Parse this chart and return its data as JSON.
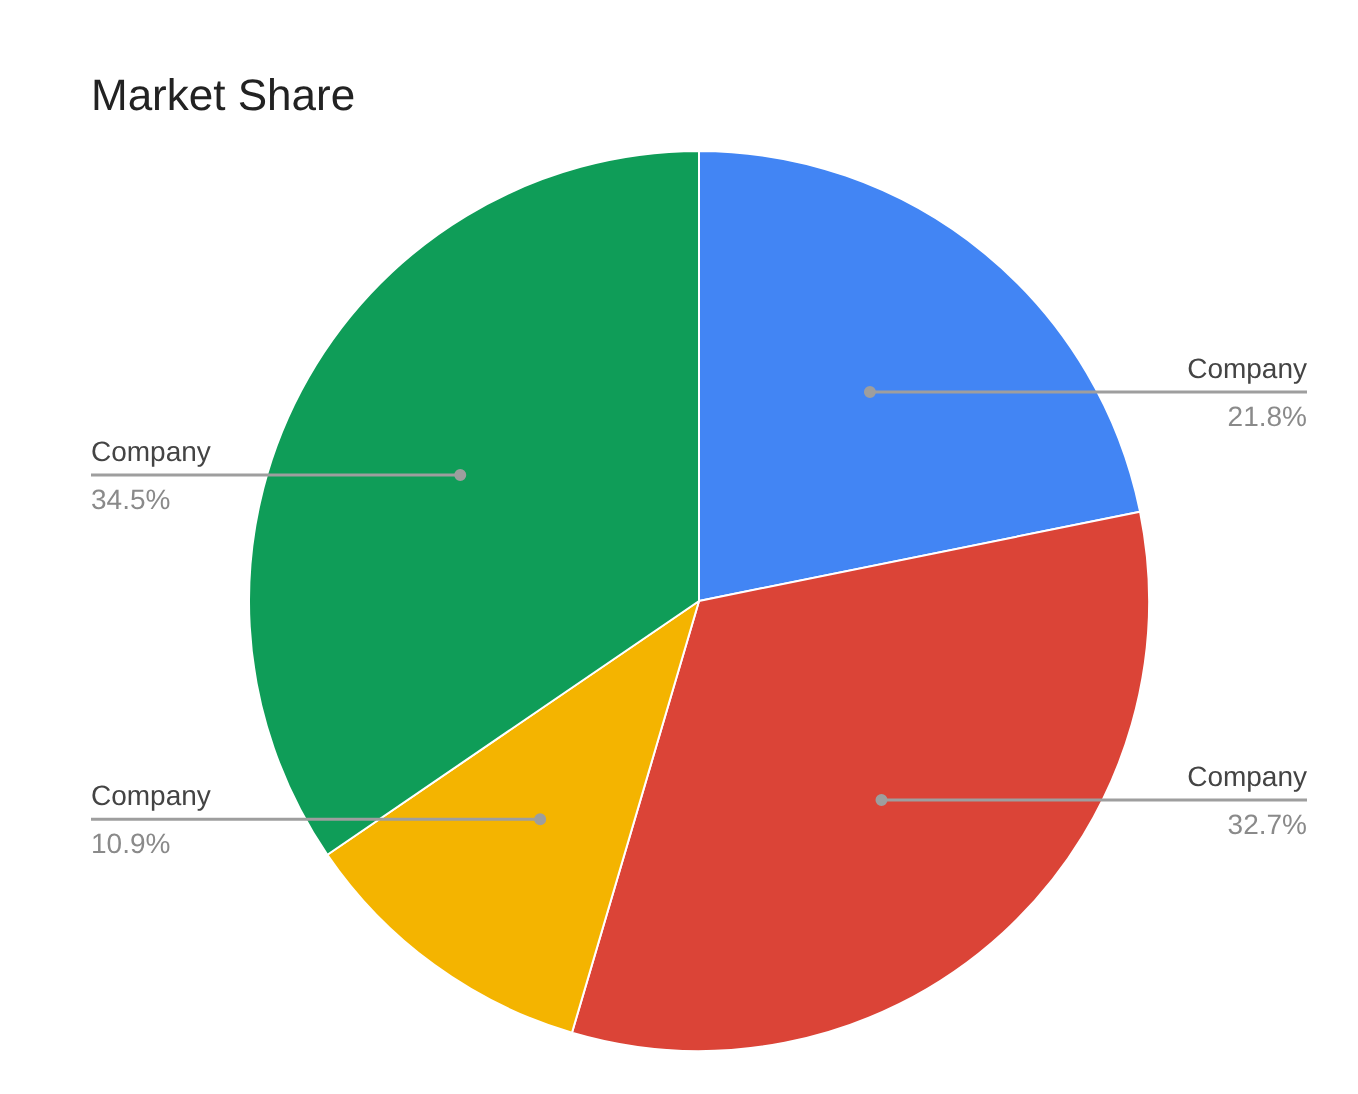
{
  "chart_data": {
    "type": "pie",
    "title": "Market Share",
    "categories": [
      "Company",
      "Company",
      "Company",
      "Company"
    ],
    "values": [
      21.8,
      32.7,
      10.9,
      34.5
    ],
    "colors": [
      "#4285f4",
      "#db4437",
      "#f4b400",
      "#0f9d58"
    ],
    "value_labels": [
      "21.8%",
      "32.7%",
      "10.9%",
      "34.5%"
    ]
  }
}
